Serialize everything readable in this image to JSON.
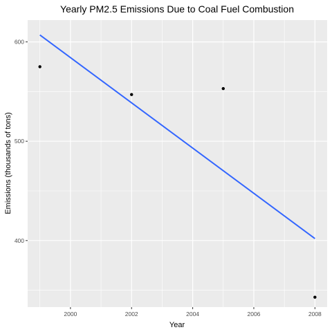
{
  "chart_data": {
    "type": "scatter",
    "title": "Yearly PM2.5 Emissions Due to Coal Fuel Combustion",
    "xlabel": "Year",
    "ylabel": "Emissions (thousands of tons)",
    "xlim": [
      1998.6,
      2008.4
    ],
    "ylim": [
      333,
      622
    ],
    "x_ticks": [
      2000,
      2002,
      2004,
      2006,
      2008
    ],
    "y_ticks": [
      400,
      500,
      600
    ],
    "grid": true,
    "points": [
      {
        "x": 1999,
        "y": 575
      },
      {
        "x": 2002,
        "y": 547
      },
      {
        "x": 2005,
        "y": 553
      },
      {
        "x": 2008,
        "y": 343
      }
    ],
    "trend_line": {
      "x": [
        1999,
        2008
      ],
      "y": [
        607,
        402
      ]
    },
    "colors": {
      "panel_background": "#ebebeb",
      "grid": "#ffffff",
      "point": "#000000",
      "trend_line": "#3366ff"
    }
  }
}
